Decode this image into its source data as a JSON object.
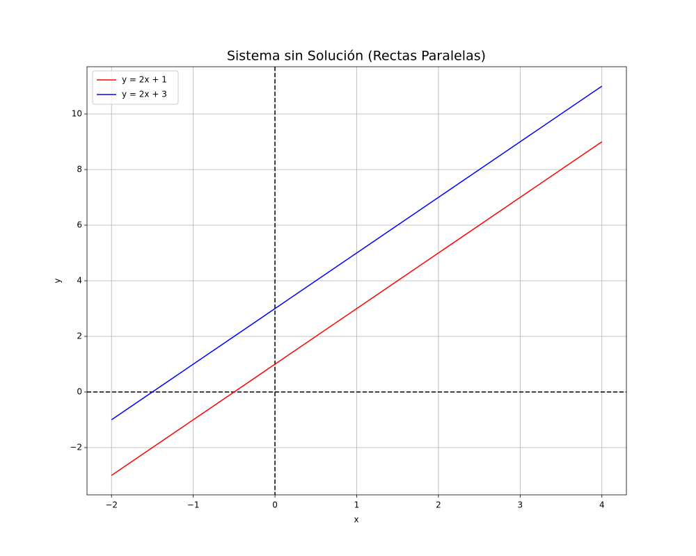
{
  "chart_data": {
    "type": "line",
    "title": "Sistema sin Solución (Rectas Paralelas)",
    "x_label": "x",
    "y_label": "y",
    "x": [
      -2,
      -1,
      0,
      1,
      2,
      3,
      4
    ],
    "series": [
      {
        "name": "y = 2x + 1",
        "color": "#ff0000",
        "values": [
          -3,
          -1,
          1,
          3,
          5,
          7,
          9
        ]
      },
      {
        "name": "y = 2x + 3",
        "color": "#0000ff",
        "values": [
          -1,
          1,
          3,
          5,
          7,
          9,
          11
        ]
      }
    ],
    "xlim": [
      -2.3,
      4.3
    ],
    "ylim": [
      -3.7,
      11.7
    ],
    "xticks": [
      {
        "value": -2,
        "label": "−2"
      },
      {
        "value": -1,
        "label": "−1"
      },
      0,
      1,
      2,
      3,
      4
    ],
    "yticks": [
      {
        "value": -2,
        "label": "−2"
      },
      0,
      2,
      4,
      6,
      8,
      10
    ],
    "reference_lines": {
      "x": 0,
      "y": 0,
      "color": "#000000"
    },
    "grid": true,
    "legend": "upper-left"
  }
}
